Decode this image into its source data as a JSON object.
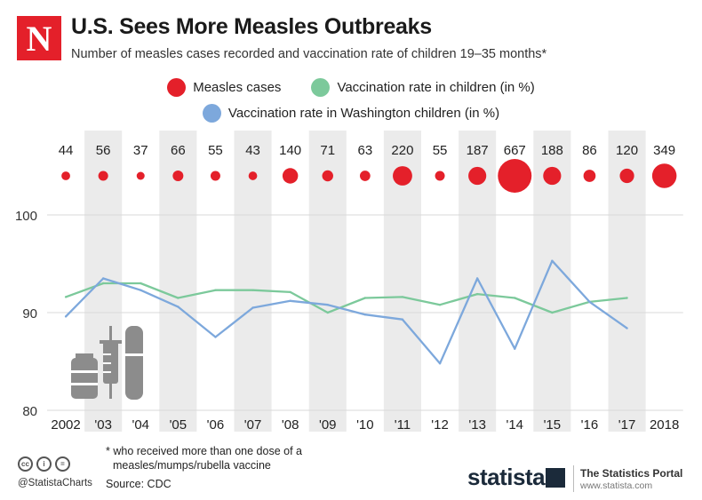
{
  "header": {
    "logo_letter": "N",
    "title": "U.S. Sees More Measles Outbreaks",
    "subtitle": "Number of measles cases recorded and vaccination rate of children 19–35 months*"
  },
  "legend": {
    "measles": "Measles cases",
    "vaccination_us": "Vaccination rate in children (in %)",
    "vaccination_wa": "Vaccination rate in Washington children (in %)"
  },
  "colors": {
    "measles": "#e4202a",
    "vaccination_us": "#7cc99b",
    "vaccination_wa": "#7da8dc",
    "band": "#ebebeb",
    "icon": "#8c8c8c"
  },
  "chart_data": {
    "type": "line",
    "categories": [
      "2002",
      "'03",
      "'04",
      "'05",
      "'06",
      "'07",
      "'08",
      "'09",
      "'10",
      "'11",
      "'12",
      "'13",
      "'14",
      "'15",
      "'16",
      "'17",
      "2018"
    ],
    "measles_cases": [
      44,
      56,
      37,
      66,
      55,
      43,
      140,
      71,
      63,
      220,
      55,
      187,
      667,
      188,
      86,
      120,
      349
    ],
    "series": [
      {
        "name": "Vaccination rate in children (in %)",
        "values": [
          91.6,
          93.0,
          93.0,
          91.5,
          92.3,
          92.3,
          92.1,
          90.0,
          91.5,
          91.6,
          90.8,
          91.9,
          91.5,
          90.0,
          91.1,
          91.5,
          null
        ]
      },
      {
        "name": "Vaccination rate in Washington children (in %)",
        "values": [
          89.6,
          93.5,
          92.3,
          90.6,
          87.5,
          90.5,
          91.2,
          90.8,
          89.8,
          89.3,
          84.8,
          93.5,
          86.3,
          95.3,
          91.1,
          88.4,
          null
        ]
      }
    ],
    "y_ticks": [
      80,
      90,
      100
    ],
    "ylim": [
      80,
      100
    ]
  },
  "footer": {
    "footnote_line1": "* who received more than one dose of a",
    "footnote_line2": "measles/mumps/rubella vaccine",
    "handle": "@StatistaCharts",
    "source": "Source: CDC",
    "brand": "statista",
    "portal": "The Statistics Portal",
    "portal_url": "www.statista.com",
    "cc_labels": [
      "cc",
      "i",
      "="
    ]
  }
}
